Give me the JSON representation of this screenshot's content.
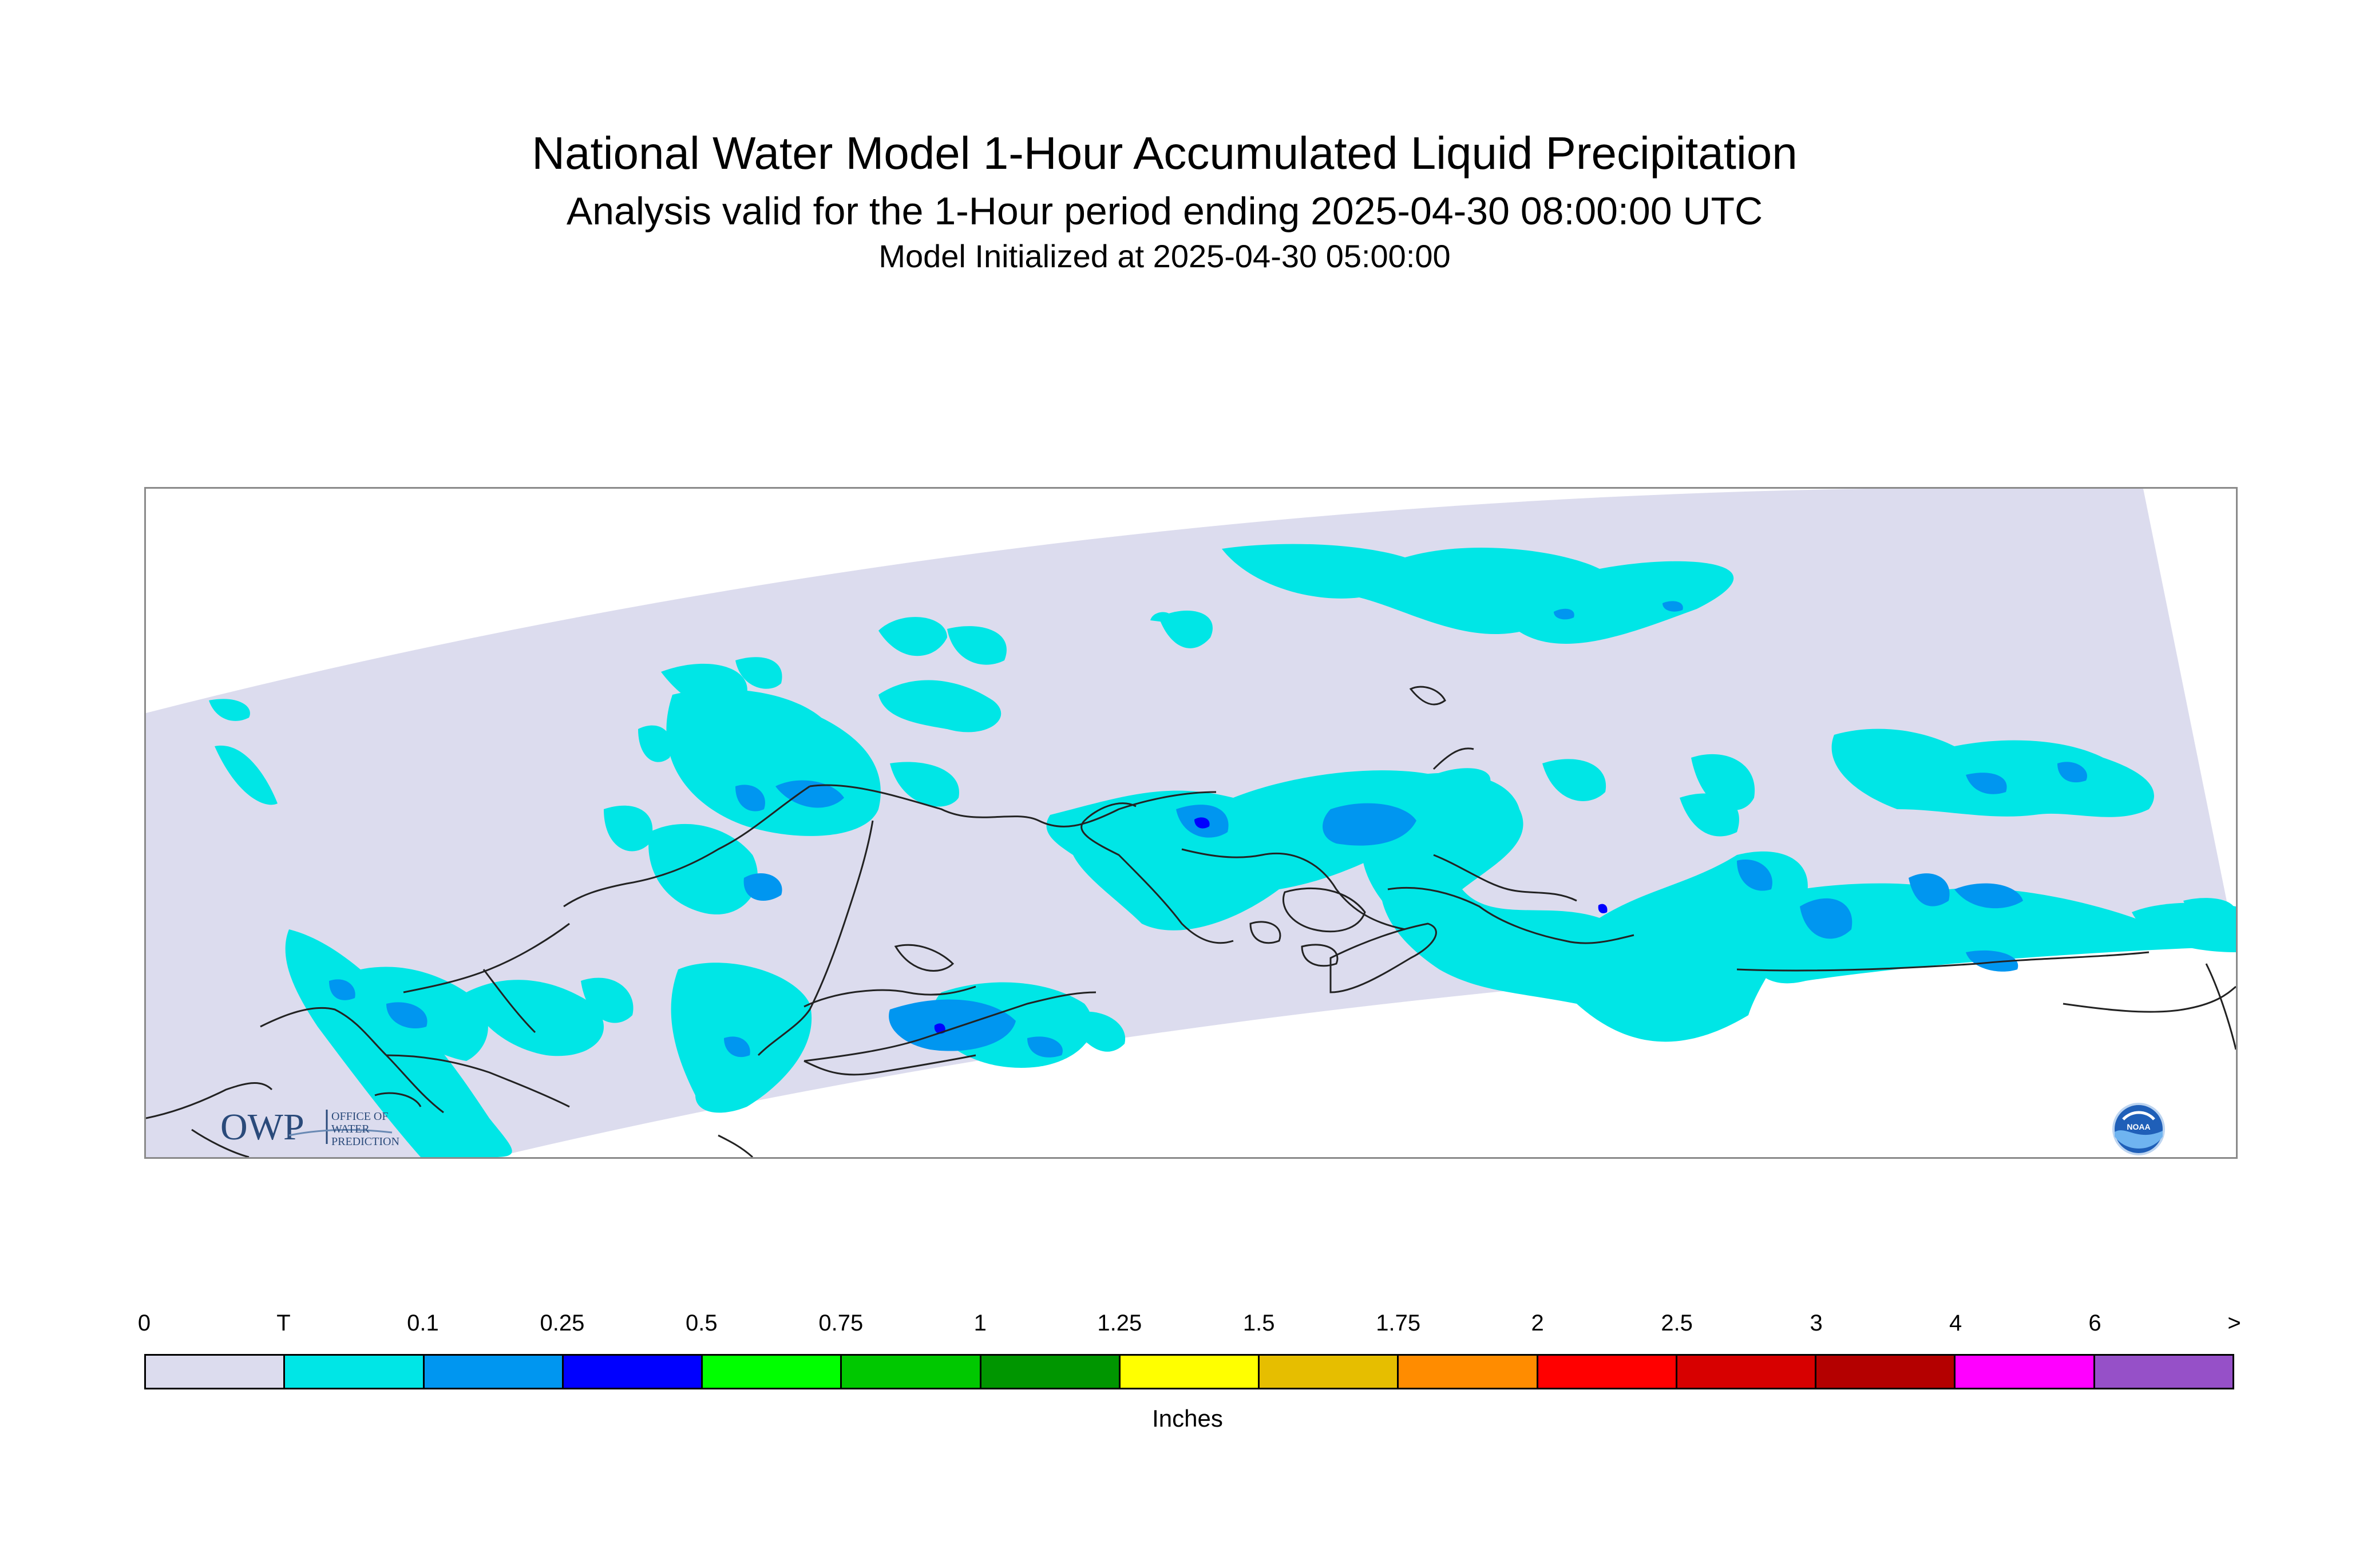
{
  "title": "National Water Model 1-Hour Accumulated Liquid Precipitation",
  "subtitle": "Analysis valid for the 1-Hour period ending 2025-04-30 08:00:00 UTC",
  "init_text": "Model Initialized at 2025-04-30 05:00:00",
  "logos": {
    "owp_letters": "OWP",
    "owp_text": [
      "OFFICE OF",
      "WATER",
      "PREDICTION"
    ],
    "noaa_text": "NOAA"
  },
  "legend": {
    "tick_labels": [
      "0",
      "T",
      "0.1",
      "0.25",
      "0.5",
      "0.75",
      "1",
      "1.25",
      "1.5",
      "1.75",
      "2",
      "2.5",
      "3",
      "4",
      "6",
      ">"
    ],
    "colors": [
      "#dcdcee",
      "#00e6e6",
      "#0096f0",
      "#0000ff",
      "#00ff00",
      "#00c800",
      "#009600",
      "#ffff00",
      "#e6be00",
      "#ff8c00",
      "#ff0000",
      "#d70000",
      "#b40000",
      "#ff00ff",
      "#9650c8"
    ],
    "units": "Inches"
  },
  "map": {
    "no_precip_color": "#dcdcee",
    "trace_color": "#00e6e6",
    "light_color": "#0096f0",
    "moderate_color": "#0000ff",
    "coastline_color": "#222222"
  }
}
